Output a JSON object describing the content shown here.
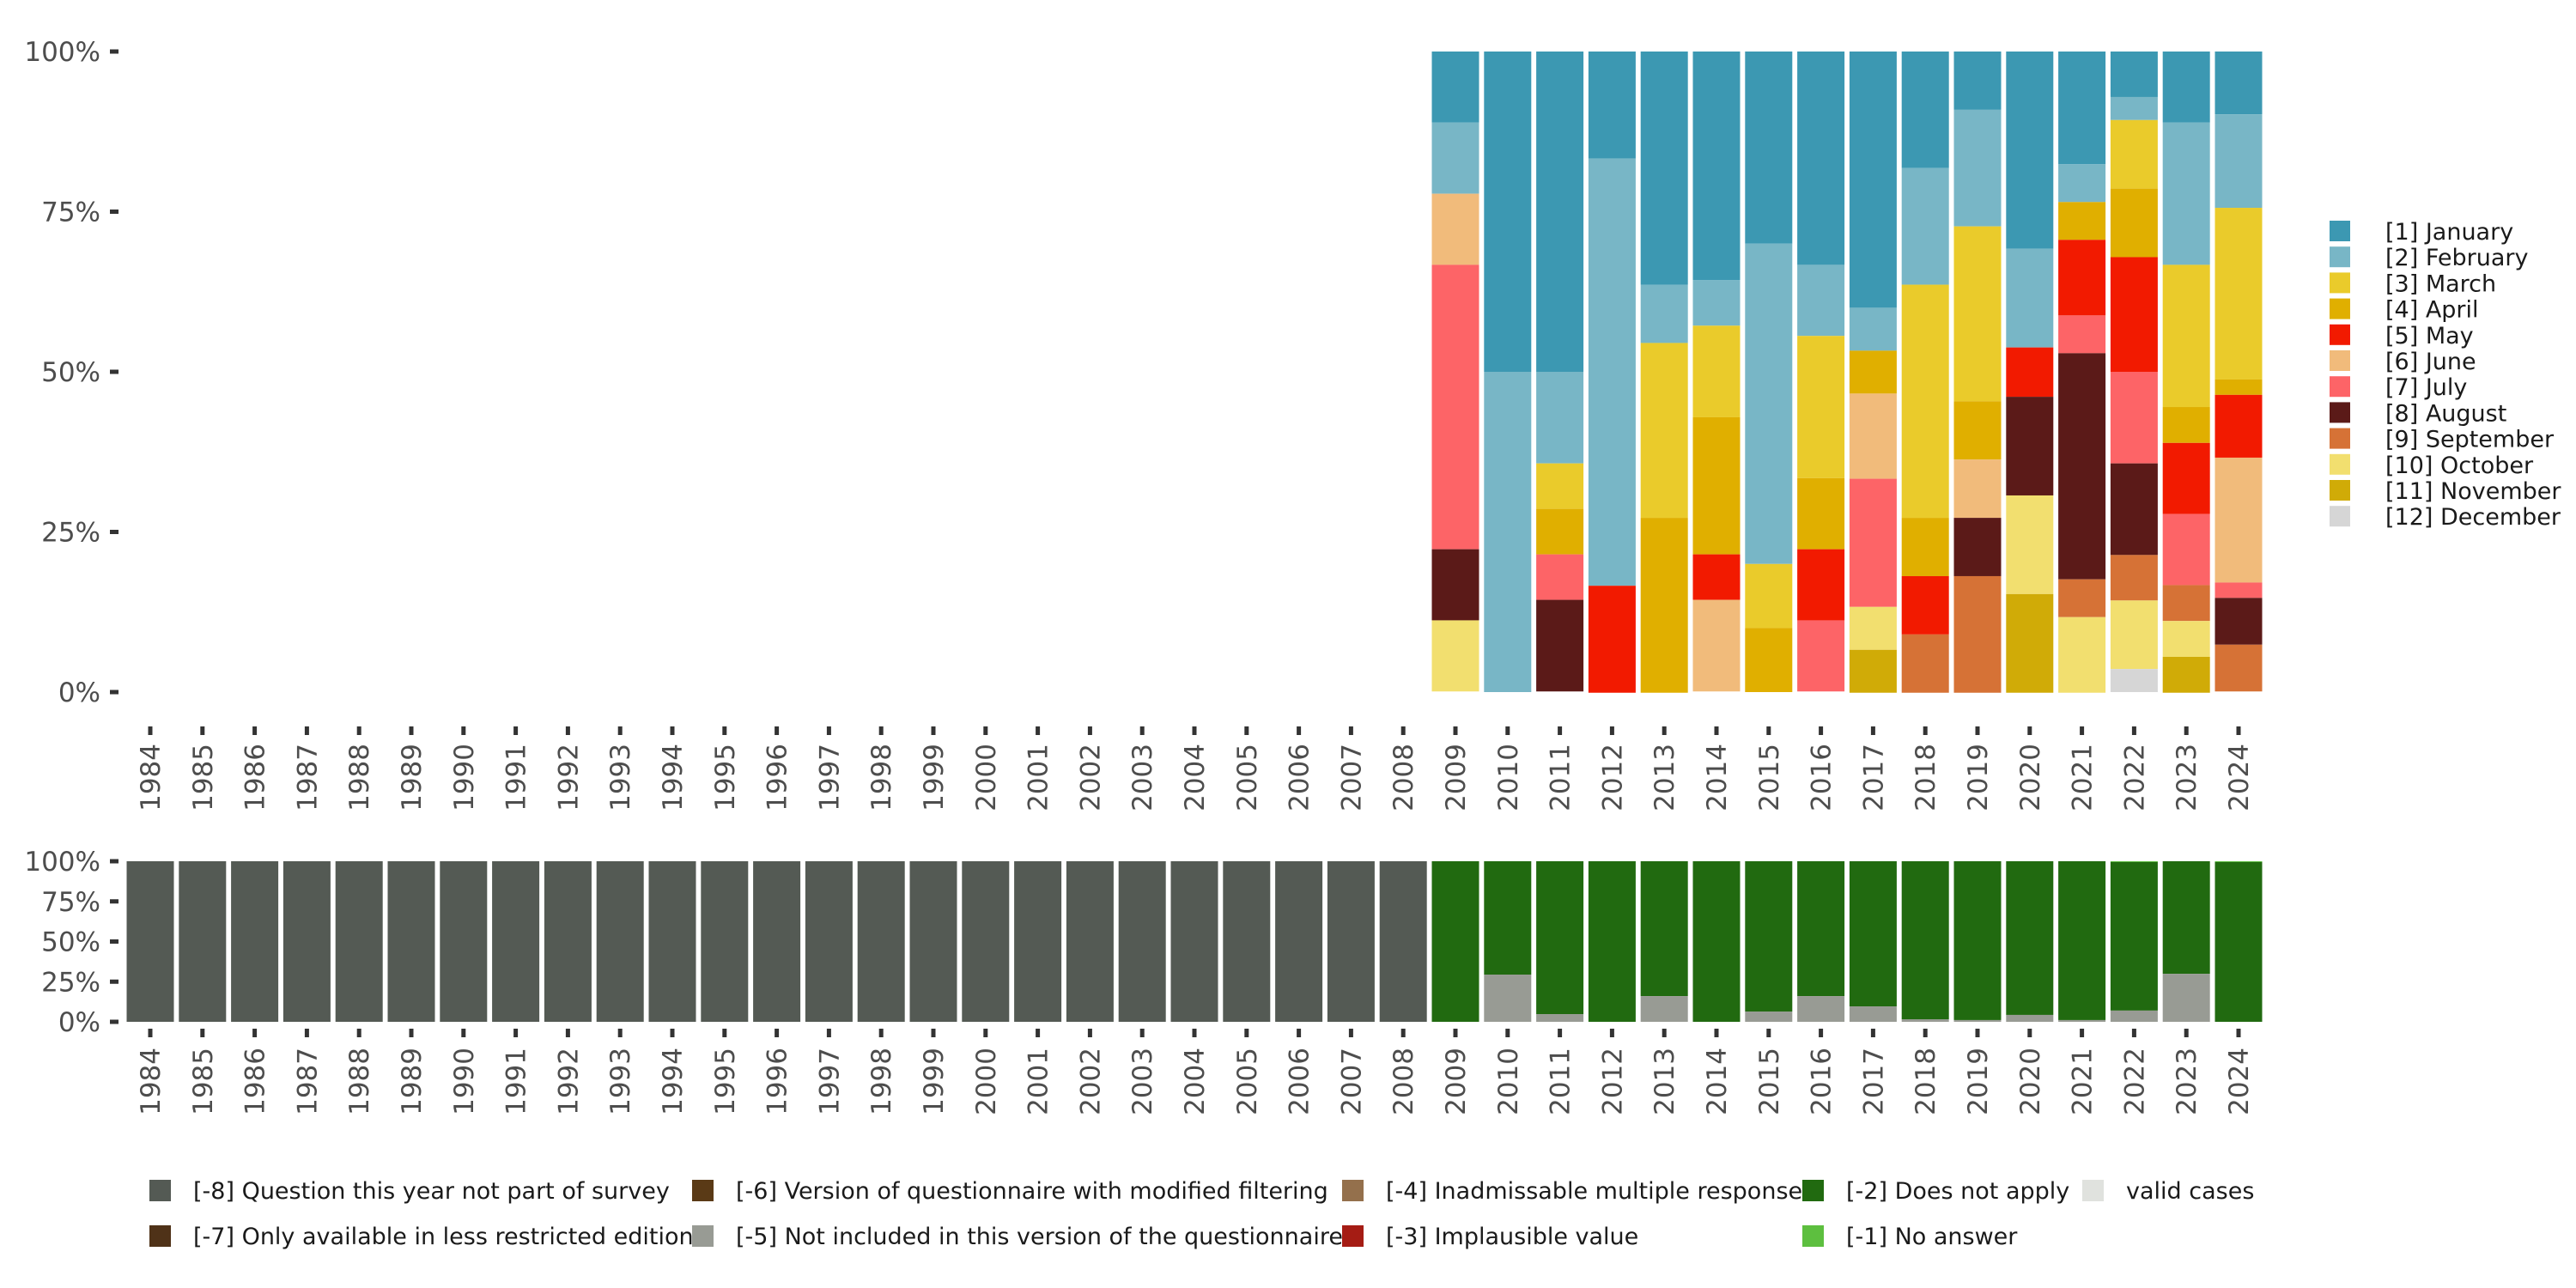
{
  "chart_data": [
    {
      "type": "bar",
      "stacked": true,
      "normalized": true,
      "title": "",
      "xlabel": "",
      "ylabel": "",
      "ylim": [
        0,
        1
      ],
      "yticks": [
        "0%",
        "25%",
        "50%",
        "75%",
        "100%"
      ],
      "grid": false,
      "legend_position": "right",
      "categories": [
        "1984",
        "1985",
        "1986",
        "1987",
        "1988",
        "1989",
        "1990",
        "1991",
        "1992",
        "1993",
        "1994",
        "1995",
        "1996",
        "1997",
        "1998",
        "1999",
        "2000",
        "2001",
        "2002",
        "2003",
        "2004",
        "2005",
        "2006",
        "2007",
        "2008",
        "2009",
        "2010",
        "2011",
        "2012",
        "2013",
        "2014",
        "2015",
        "2016",
        "2017",
        "2018",
        "2019",
        "2020",
        "2021",
        "2022",
        "2023",
        "2024"
      ],
      "series": [
        {
          "name": "[1] January",
          "color": "#3c98b2",
          "values": [
            0,
            0,
            0,
            0,
            0,
            0,
            0,
            0,
            0,
            0,
            0,
            0,
            0,
            0,
            0,
            0,
            0,
            0,
            0,
            0,
            0,
            0,
            0,
            0,
            0,
            0.111,
            0.5,
            0.5,
            0.167,
            0.364,
            0.357,
            0.3,
            0.333,
            0.4,
            0.182,
            0.091,
            0.308,
            0.176,
            0.071,
            0.111,
            0.098
          ]
        },
        {
          "name": "[2] February",
          "color": "#78b6c6",
          "values": [
            0,
            0,
            0,
            0,
            0,
            0,
            0,
            0,
            0,
            0,
            0,
            0,
            0,
            0,
            0,
            0,
            0,
            0,
            0,
            0,
            0,
            0,
            0,
            0,
            0,
            0.111,
            0.5,
            0.143,
            0.667,
            0.091,
            0.071,
            0.5,
            0.111,
            0.067,
            0.182,
            0.182,
            0.154,
            0.059,
            0.036,
            0.222,
            0.146
          ]
        },
        {
          "name": "[3] March",
          "color": "#eacb2b",
          "values": [
            0,
            0,
            0,
            0,
            0,
            0,
            0,
            0,
            0,
            0,
            0,
            0,
            0,
            0,
            0,
            0,
            0,
            0,
            0,
            0,
            0,
            0,
            0,
            0,
            0,
            0,
            0,
            0.071,
            0,
            0.273,
            0.143,
            0.1,
            0.222,
            0,
            0.364,
            0.273,
            0,
            0,
            0.107,
            0.222,
            0.268
          ]
        },
        {
          "name": "[4] April",
          "color": "#e0af00",
          "values": [
            0,
            0,
            0,
            0,
            0,
            0,
            0,
            0,
            0,
            0,
            0,
            0,
            0,
            0,
            0,
            0,
            0,
            0,
            0,
            0,
            0,
            0,
            0,
            0,
            0,
            0,
            0,
            0.071,
            0,
            0.273,
            0.214,
            0.1,
            0.111,
            0.067,
            0.091,
            0.091,
            0,
            0.059,
            0.107,
            0.056,
            0.024
          ]
        },
        {
          "name": "[5] May",
          "color": "#f21a00",
          "values": [
            0,
            0,
            0,
            0,
            0,
            0,
            0,
            0,
            0,
            0,
            0,
            0,
            0,
            0,
            0,
            0,
            0,
            0,
            0,
            0,
            0,
            0,
            0,
            0,
            0,
            0,
            0,
            0,
            0.167,
            0,
            0.071,
            0,
            0.111,
            0,
            0.091,
            0,
            0.077,
            0.118,
            0.179,
            0.111,
            0.098
          ]
        },
        {
          "name": "[6] June",
          "color": "#f1bb7b",
          "values": [
            0,
            0,
            0,
            0,
            0,
            0,
            0,
            0,
            0,
            0,
            0,
            0,
            0,
            0,
            0,
            0,
            0,
            0,
            0,
            0,
            0,
            0,
            0,
            0,
            0,
            0.111,
            0,
            0,
            0,
            0,
            0.143,
            0,
            0,
            0.133,
            0,
            0.091,
            0,
            0,
            0,
            0,
            0.195
          ]
        },
        {
          "name": "[7] July",
          "color": "#fd6467",
          "values": [
            0,
            0,
            0,
            0,
            0,
            0,
            0,
            0,
            0,
            0,
            0,
            0,
            0,
            0,
            0,
            0,
            0,
            0,
            0,
            0,
            0,
            0,
            0,
            0,
            0,
            0.444,
            0,
            0.071,
            0,
            0,
            0,
            0,
            0.111,
            0.2,
            0,
            0,
            0,
            0.059,
            0.143,
            0.111,
            0.024
          ]
        },
        {
          "name": "[8] August",
          "color": "#5b1a18",
          "values": [
            0,
            0,
            0,
            0,
            0,
            0,
            0,
            0,
            0,
            0,
            0,
            0,
            0,
            0,
            0,
            0,
            0,
            0,
            0,
            0,
            0,
            0,
            0,
            0,
            0,
            0.111,
            0,
            0.143,
            0,
            0,
            0,
            0,
            0,
            0,
            0,
            0.091,
            0.154,
            0.353,
            0.143,
            0,
            0.073
          ]
        },
        {
          "name": "[9] September",
          "color": "#d67236",
          "values": [
            0,
            0,
            0,
            0,
            0,
            0,
            0,
            0,
            0,
            0,
            0,
            0,
            0,
            0,
            0,
            0,
            0,
            0,
            0,
            0,
            0,
            0,
            0,
            0,
            0,
            0,
            0,
            0,
            0,
            0,
            0,
            0,
            0,
            0,
            0.091,
            0.182,
            0,
            0.059,
            0.071,
            0.056,
            0.073
          ]
        },
        {
          "name": "[10] October",
          "color": "#f2df6f",
          "values": [
            0,
            0,
            0,
            0,
            0,
            0,
            0,
            0,
            0,
            0,
            0,
            0,
            0,
            0,
            0,
            0,
            0,
            0,
            0,
            0,
            0,
            0,
            0,
            0,
            0,
            0.111,
            0,
            0,
            0,
            0,
            0,
            0,
            0,
            0.067,
            0,
            0,
            0.154,
            0.118,
            0.107,
            0.056,
            0
          ]
        },
        {
          "name": "[11] November",
          "color": "#d0ab07",
          "values": [
            0,
            0,
            0,
            0,
            0,
            0,
            0,
            0,
            0,
            0,
            0,
            0,
            0,
            0,
            0,
            0,
            0,
            0,
            0,
            0,
            0,
            0,
            0,
            0,
            0,
            0,
            0,
            0,
            0,
            0,
            0,
            0,
            0,
            0.067,
            0,
            0,
            0.154,
            0,
            0,
            0.056,
            0
          ]
        },
        {
          "name": "[12] December",
          "color": "#d6d6d6",
          "values": [
            0,
            0,
            0,
            0,
            0,
            0,
            0,
            0,
            0,
            0,
            0,
            0,
            0,
            0,
            0,
            0,
            0,
            0,
            0,
            0,
            0,
            0,
            0,
            0,
            0,
            0,
            0,
            0,
            0,
            0,
            0,
            0,
            0,
            0,
            0,
            0,
            0,
            0,
            0.036,
            0,
            0
          ]
        }
      ]
    },
    {
      "type": "bar",
      "stacked": true,
      "normalized": true,
      "title": "",
      "xlabel": "",
      "ylabel": "",
      "ylim": [
        0,
        1
      ],
      "yticks": [
        "0%",
        "25%",
        "50%",
        "75%",
        "100%"
      ],
      "grid": false,
      "legend_position": "bottom",
      "categories": [
        "1984",
        "1985",
        "1986",
        "1987",
        "1988",
        "1989",
        "1990",
        "1991",
        "1992",
        "1993",
        "1994",
        "1995",
        "1996",
        "1997",
        "1998",
        "1999",
        "2000",
        "2001",
        "2002",
        "2003",
        "2004",
        "2005",
        "2006",
        "2007",
        "2008",
        "2009",
        "2010",
        "2011",
        "2012",
        "2013",
        "2014",
        "2015",
        "2016",
        "2017",
        "2018",
        "2019",
        "2020",
        "2021",
        "2022",
        "2023",
        "2024"
      ],
      "series": [
        {
          "name": "[-1] No answer",
          "color": "#5dbf3f",
          "values": [
            0,
            0,
            0,
            0,
            0,
            0,
            0,
            0,
            0,
            0,
            0,
            0,
            0,
            0,
            0,
            0,
            0,
            0,
            0,
            0,
            0,
            0,
            0,
            0,
            0,
            0,
            0,
            0,
            0,
            0,
            0,
            0,
            0,
            0,
            0,
            0,
            0,
            0,
            0.005,
            0,
            0.005
          ]
        },
        {
          "name": "[-2] Does not apply",
          "color": "#216a10",
          "values": [
            0,
            0,
            0,
            0,
            0,
            0,
            0,
            0,
            0,
            0,
            0,
            0,
            0,
            0,
            0,
            0,
            0,
            0,
            0,
            0,
            0,
            0,
            0,
            0,
            0,
            1,
            0.706,
            0.952,
            1,
            0.84,
            1,
            0.936,
            0.84,
            0.904,
            0.984,
            0.989,
            0.957,
            0.989,
            0.925,
            0.701,
            0.995
          ]
        },
        {
          "name": "[-5] Not included in this version of the questionnaire",
          "color": "#989b94",
          "values": [
            0,
            0,
            0,
            0,
            0,
            0,
            0,
            0,
            0,
            0,
            0,
            0,
            0,
            0,
            0,
            0,
            0,
            0,
            0,
            0,
            0,
            0,
            0,
            0,
            0,
            0,
            0.294,
            0.048,
            0,
            0.16,
            0,
            0.064,
            0.16,
            0.096,
            0.016,
            0.011,
            0.043,
            0.011,
            0.07,
            0.299,
            0
          ]
        },
        {
          "name": "[-8] Question this year not part of survey",
          "color": "#545a54",
          "values": [
            1,
            1,
            1,
            1,
            1,
            1,
            1,
            1,
            1,
            1,
            1,
            1,
            1,
            1,
            1,
            1,
            1,
            1,
            1,
            1,
            1,
            1,
            1,
            1,
            1,
            0,
            0,
            0,
            0,
            0,
            0,
            0,
            0,
            0,
            0,
            0,
            0,
            0,
            0,
            0,
            0
          ]
        }
      ]
    }
  ],
  "bottom_legend": [
    {
      "label": "[-8] Question this year not part of survey",
      "color": "#545a54"
    },
    {
      "label": "[-7] Only available in less restricted edition",
      "color": "#4f3218"
    },
    {
      "label": "[-6] Version of questionnaire with modified filtering",
      "color": "#5a3a16"
    },
    {
      "label": "[-5] Not included in this version of the questionnaire",
      "color": "#989b94"
    },
    {
      "label": "[-4] Inadmissable multiple response",
      "color": "#94704c"
    },
    {
      "label": "[-3] Implausible value",
      "color": "#a51c14"
    },
    {
      "label": "[-2] Does not apply",
      "color": "#216a10"
    },
    {
      "label": "[-1] No answer",
      "color": "#5dbf3f"
    },
    {
      "label": "valid cases",
      "color": "#e0e2de"
    }
  ]
}
